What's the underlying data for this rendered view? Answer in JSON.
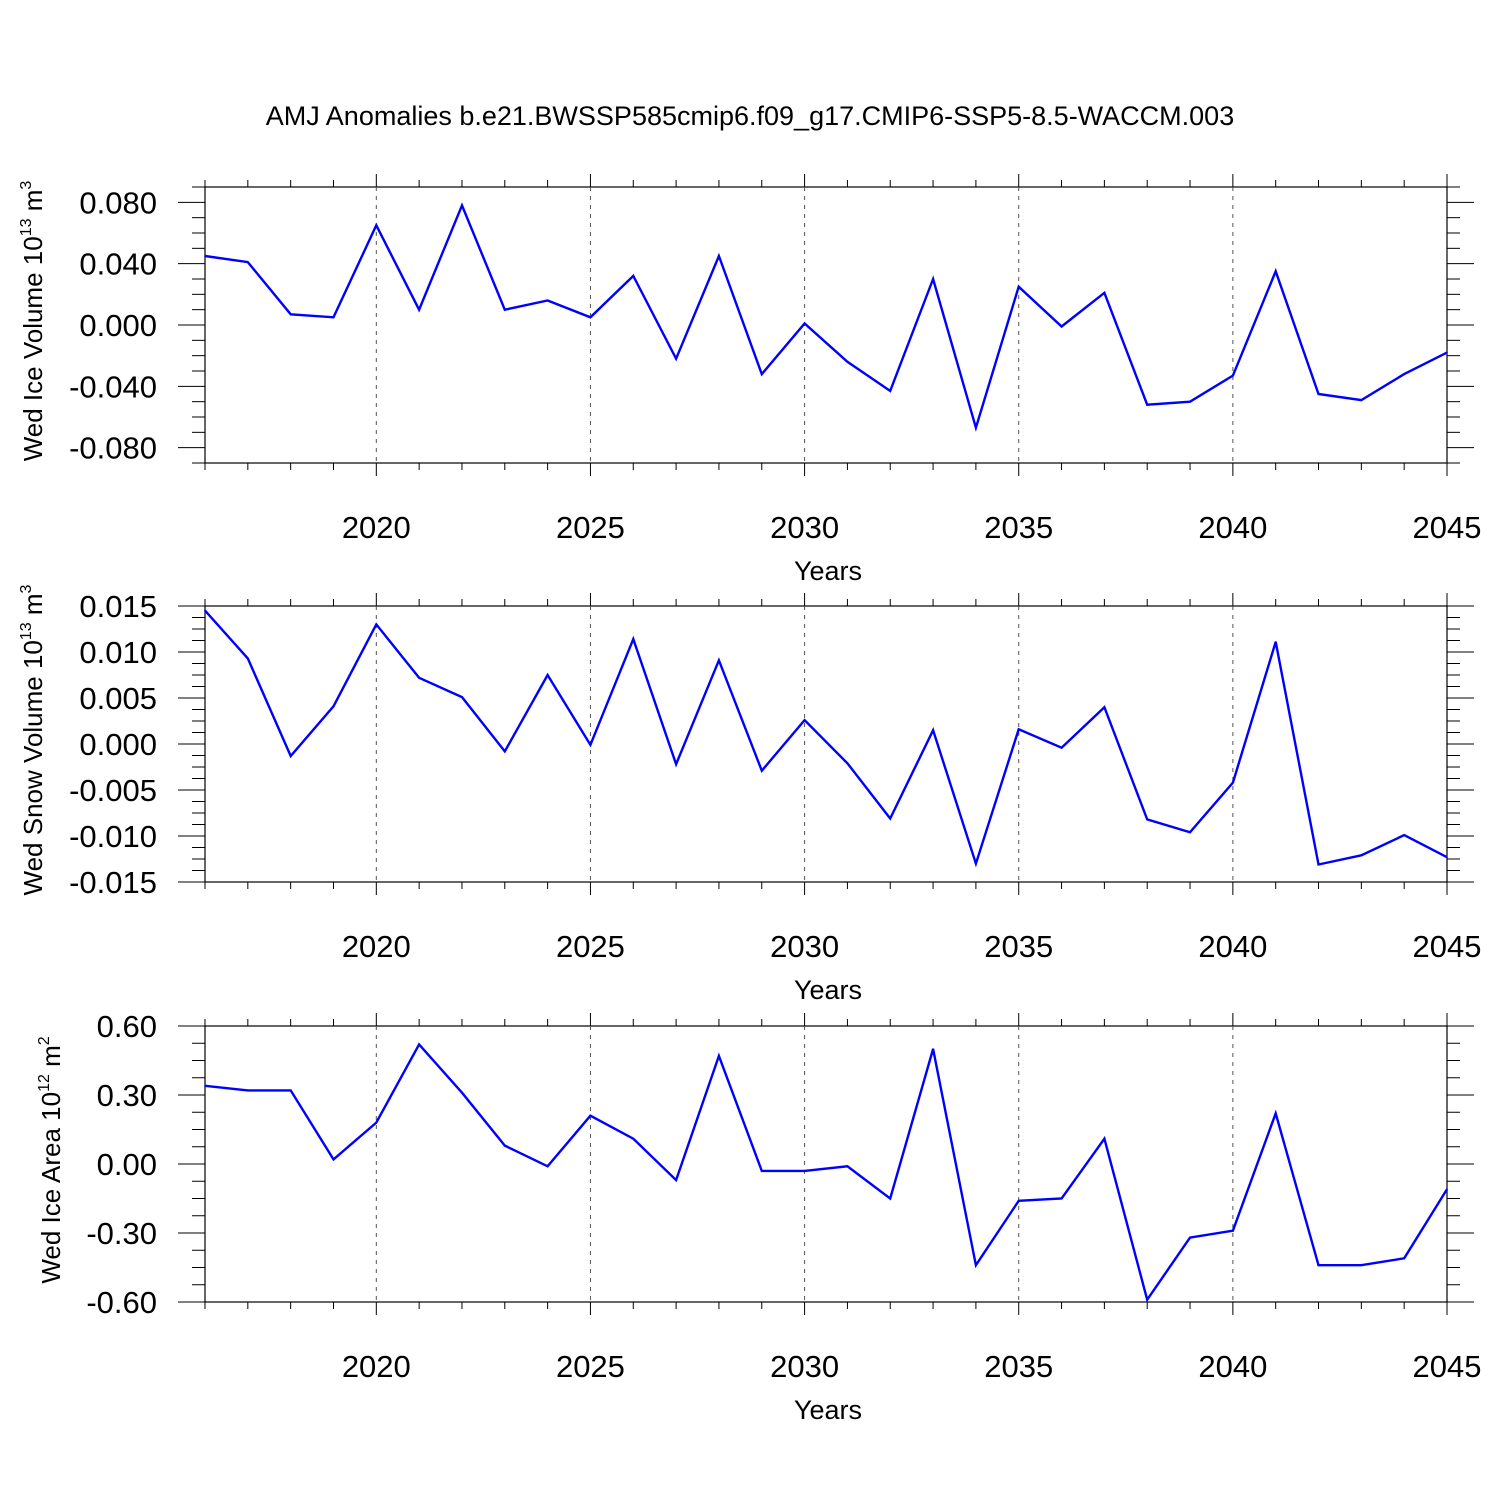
{
  "title": "AMJ Anomalies b.e21.BWSSP585cmip6.f09_g17.CMIP6-SSP5-8.5-WACCM.003",
  "line_color": "#0000ff",
  "chart_data": [
    {
      "type": "line",
      "ylabel": "Wed Ice Volume 10",
      "ylabel_exp": "13",
      "ylabel_unit": " m",
      "ylabel_unit_exp": "3",
      "xlabel": "Years",
      "xlim": [
        2016,
        2045
      ],
      "ylim": [
        -0.09,
        0.09
      ],
      "x_ticks": [
        2020,
        2025,
        2030,
        2035,
        2040,
        2045
      ],
      "y_ticks": [
        -0.08,
        -0.04,
        0.0,
        0.04,
        0.08
      ],
      "y_tick_labels": [
        "-0.080",
        "-0.040",
        "0.000",
        "0.040",
        "0.080"
      ],
      "grid": "vertical dashed at major x ticks",
      "x": [
        2016,
        2017,
        2018,
        2019,
        2020,
        2021,
        2022,
        2023,
        2024,
        2025,
        2026,
        2027,
        2028,
        2029,
        2030,
        2031,
        2032,
        2033,
        2034,
        2035,
        2036,
        2037,
        2038,
        2039,
        2040,
        2041,
        2042,
        2043,
        2044,
        2045
      ],
      "values": [
        0.045,
        0.041,
        0.007,
        0.005,
        0.065,
        0.01,
        0.078,
        0.01,
        0.016,
        0.005,
        0.032,
        -0.022,
        0.045,
        -0.032,
        0.001,
        -0.024,
        -0.043,
        0.03,
        -0.067,
        0.025,
        -0.001,
        0.021,
        -0.052,
        -0.05,
        -0.033,
        0.035,
        -0.045,
        -0.049,
        -0.032,
        -0.018
      ]
    },
    {
      "type": "line",
      "ylabel": "Wed Snow Volume 10",
      "ylabel_exp": "13",
      "ylabel_unit": " m",
      "ylabel_unit_exp": "3",
      "xlabel": "Years",
      "xlim": [
        2016,
        2045
      ],
      "ylim": [
        -0.015,
        0.015
      ],
      "x_ticks": [
        2020,
        2025,
        2030,
        2035,
        2040,
        2045
      ],
      "y_ticks": [
        -0.015,
        -0.01,
        -0.005,
        0.0,
        0.005,
        0.01,
        0.015
      ],
      "y_tick_labels": [
        "-0.015",
        "-0.010",
        "-0.005",
        "0.000",
        "0.005",
        "0.010",
        "0.015"
      ],
      "grid": "vertical dashed at major x ticks",
      "x": [
        2016,
        2017,
        2018,
        2019,
        2020,
        2021,
        2022,
        2023,
        2024,
        2025,
        2026,
        2027,
        2028,
        2029,
        2030,
        2031,
        2032,
        2033,
        2034,
        2035,
        2036,
        2037,
        2038,
        2039,
        2040,
        2041,
        2042,
        2043,
        2044,
        2045
      ],
      "values": [
        0.0145,
        0.0093,
        -0.0013,
        0.0041,
        0.013,
        0.0072,
        0.0051,
        -0.0008,
        0.0075,
        -0.0001,
        0.0114,
        -0.0022,
        0.0091,
        -0.0029,
        0.0026,
        -0.0021,
        -0.0081,
        0.0015,
        -0.013,
        0.0016,
        -0.0004,
        0.004,
        -0.0082,
        -0.0096,
        -0.0042,
        0.0111,
        -0.0131,
        -0.0121,
        -0.0099,
        -0.0123
      ]
    },
    {
      "type": "line",
      "ylabel": "Wed Ice Area 10",
      "ylabel_exp": "12",
      "ylabel_unit": " m",
      "ylabel_unit_exp": "2",
      "xlabel": "Years",
      "xlim": [
        2016,
        2045
      ],
      "ylim": [
        -0.6,
        0.6
      ],
      "x_ticks": [
        2020,
        2025,
        2030,
        2035,
        2040,
        2045
      ],
      "y_ticks": [
        -0.6,
        -0.3,
        0.0,
        0.3,
        0.6
      ],
      "y_tick_labels": [
        "-0.60",
        "-0.30",
        "0.00",
        "0.30",
        "0.60"
      ],
      "grid": "vertical dashed at major x ticks",
      "x": [
        2016,
        2017,
        2018,
        2019,
        2020,
        2021,
        2022,
        2023,
        2024,
        2025,
        2026,
        2027,
        2028,
        2029,
        2030,
        2031,
        2032,
        2033,
        2034,
        2035,
        2036,
        2037,
        2038,
        2039,
        2040,
        2041,
        2042,
        2043,
        2044,
        2045
      ],
      "values": [
        0.34,
        0.32,
        0.32,
        0.02,
        0.18,
        0.52,
        0.31,
        0.08,
        -0.01,
        0.21,
        0.11,
        -0.07,
        0.47,
        -0.03,
        -0.03,
        -0.01,
        -0.15,
        0.5,
        -0.44,
        -0.16,
        -0.15,
        0.11,
        -0.59,
        -0.32,
        -0.29,
        0.22,
        -0.44,
        -0.44,
        -0.41,
        -0.11
      ]
    }
  ]
}
